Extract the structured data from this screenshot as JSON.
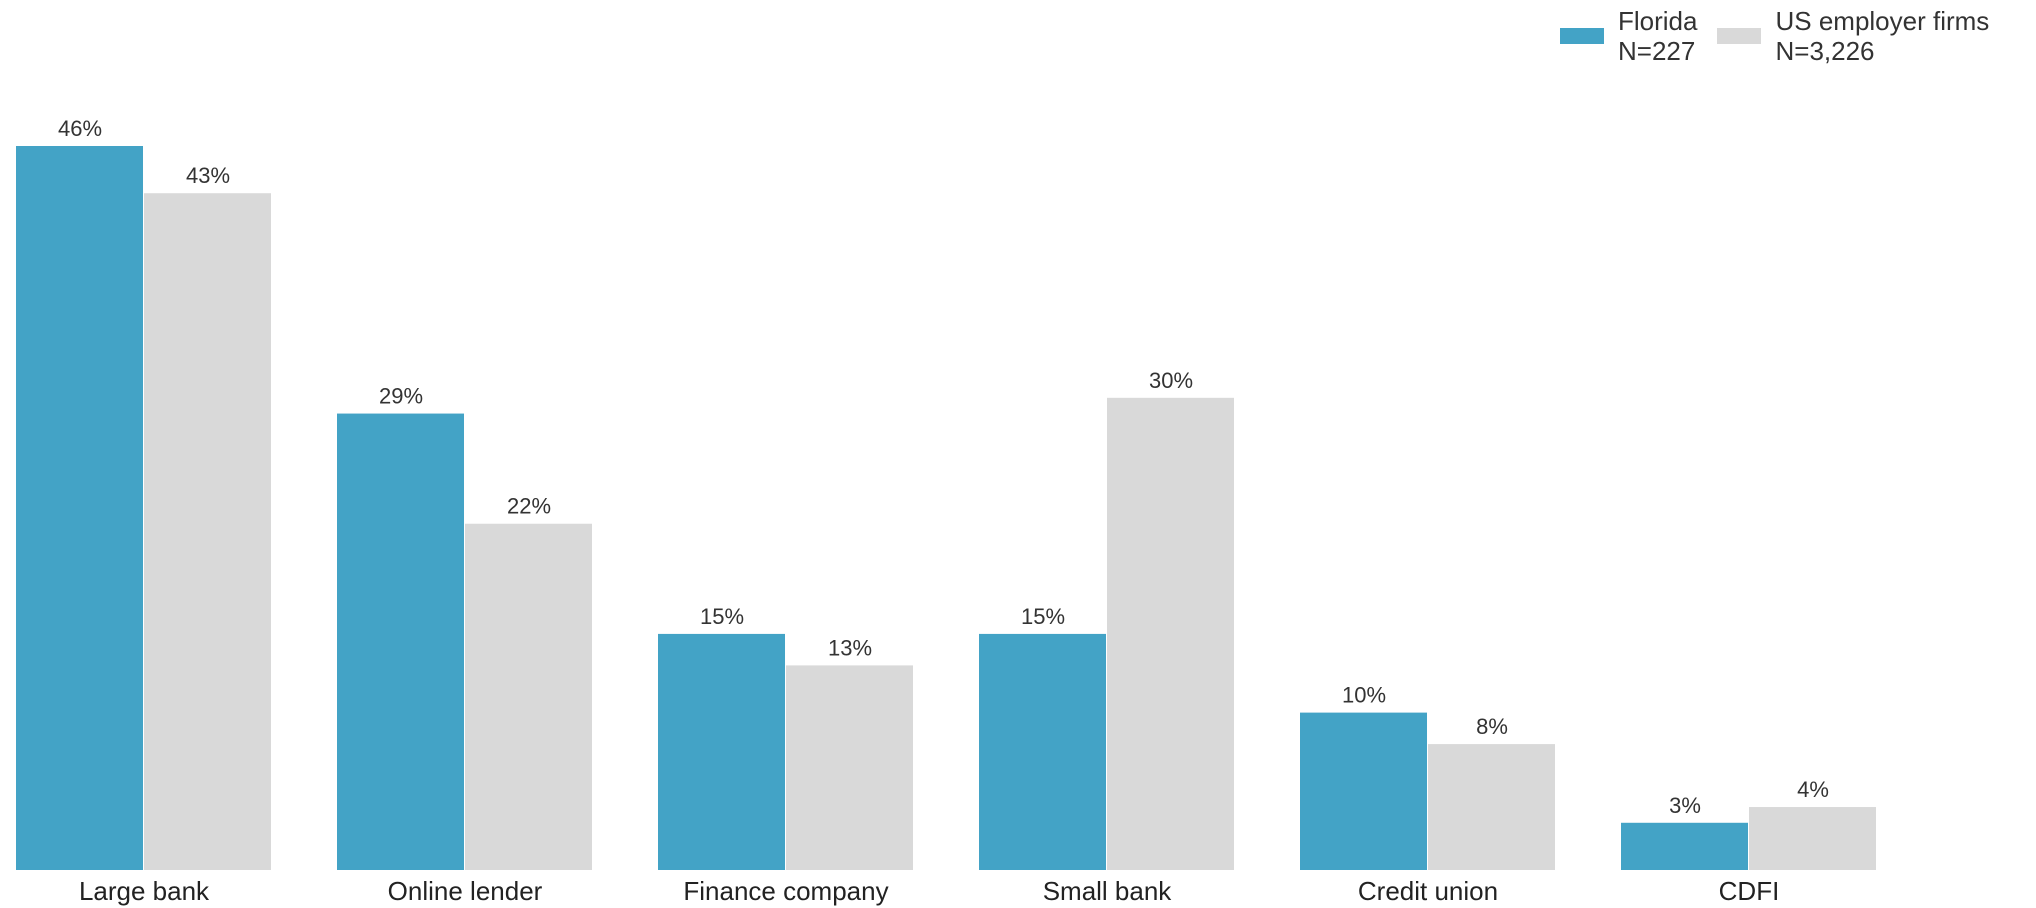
{
  "chart_data": {
    "type": "bar",
    "categories": [
      "Large bank",
      "Online lender",
      "Finance company",
      "Small bank",
      "Credit union",
      "CDFI"
    ],
    "series": [
      {
        "name": "Florida",
        "sublabel": "N=227",
        "color": "#43A3C6",
        "values": [
          46,
          29,
          15,
          15,
          10,
          3
        ],
        "value_labels": [
          "46%",
          "29%",
          "15%",
          "15%",
          "10%",
          "3%"
        ]
      },
      {
        "name": "US employer firms",
        "sublabel": "N=3,226",
        "color": "#D9D9D9",
        "values": [
          43,
          22,
          13,
          30,
          8,
          4
        ],
        "value_labels": [
          "43%",
          "22%",
          "13%",
          "30%",
          "8%",
          "4%"
        ]
      }
    ],
    "title": "",
    "xlabel": "",
    "ylabel": "",
    "ylim": [
      0,
      46
    ],
    "grid": false,
    "legend_position": "top-right"
  }
}
